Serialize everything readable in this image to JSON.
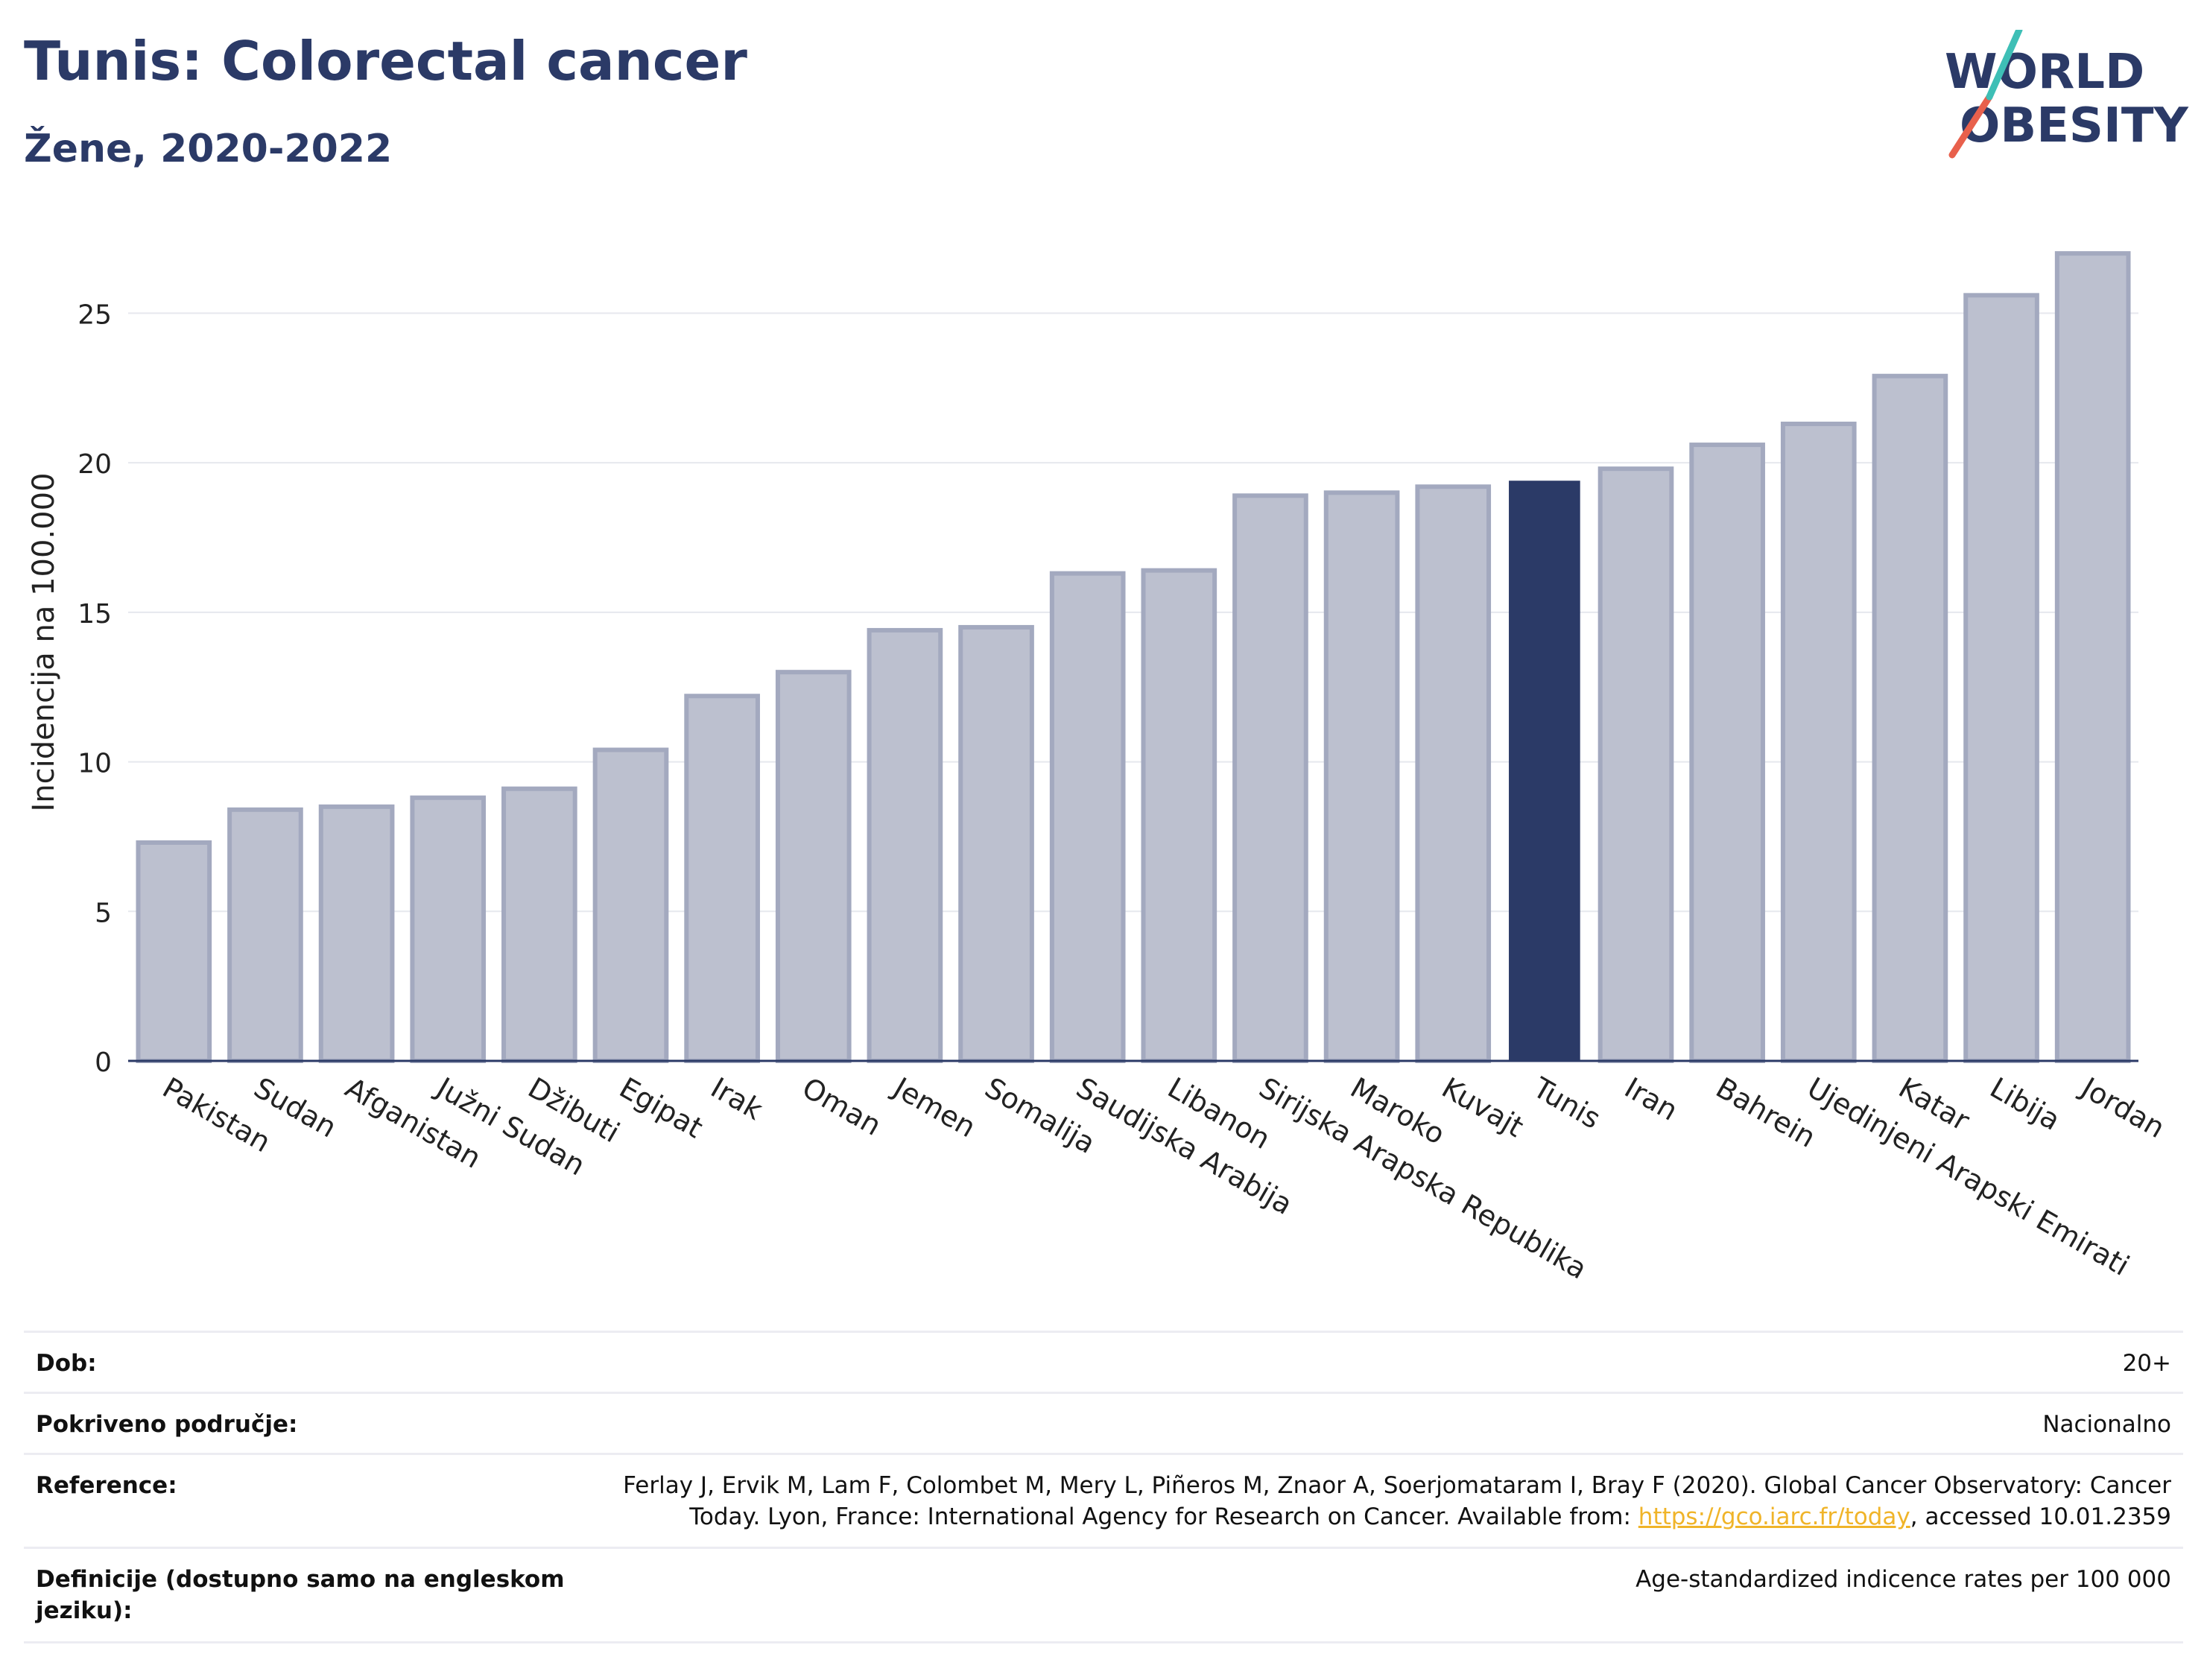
{
  "header": {
    "title": "Tunis: Colorectal cancer",
    "subtitle": "Žene, 2020-2022",
    "logo_line1": "WORLD",
    "logo_line2": "OBESITY"
  },
  "chart_data": {
    "type": "bar",
    "title": "Tunis: Colorectal cancer",
    "subtitle": "Žene, 2020-2022",
    "ylabel": "Incidencija na 100.000",
    "xlabel": "",
    "ylim": [
      0,
      28
    ],
    "yticks": [
      0,
      5,
      10,
      15,
      20,
      25
    ],
    "grid": true,
    "categories": [
      "Pakistan",
      "Sudan",
      "Afganistan",
      "Južni Sudan",
      "Džibuti",
      "Egipat",
      "Irak",
      "Oman",
      "Jemen",
      "Somalija",
      "Saudijska Arabija",
      "Libanon",
      "Sirijska Arapska Republika",
      "Maroko",
      "Kuvajt",
      "Tunis",
      "Iran",
      "Bahrein",
      "Ujedinjeni Arapski Emirati",
      "Katar",
      "Libija",
      "Jordan"
    ],
    "values": [
      7.3,
      8.4,
      8.5,
      8.8,
      9.1,
      10.4,
      12.2,
      13.0,
      14.4,
      14.5,
      16.3,
      16.4,
      18.9,
      19.0,
      19.2,
      19.4,
      19.8,
      20.6,
      21.3,
      22.9,
      25.6,
      27.0
    ],
    "highlight": "Tunis",
    "colors": {
      "bar": "#bcc0cf",
      "bar_border": "#a3a9bf",
      "highlight": "#2b3a67",
      "axis": "#2b3a67",
      "grid": "#e6e8ee"
    }
  },
  "info_table": [
    {
      "label": "Dob:",
      "value": "20+"
    },
    {
      "label": "Pokriveno područje:",
      "value": "Nacionalno"
    },
    {
      "label": "Reference:",
      "value_line1": "Ferlay J, Ervik M, Lam F, Colombet M, Mery L, Piñeros M, Znaor A, Soerjomataram I, Bray F (2020). Global Cancer Observatory: Cancer",
      "value_line2_pre": "Today. Lyon, France: International Agency for Research on Cancer. Available from: ",
      "link": "https://gco.iarc.fr/today",
      "value_line2_post": ", accessed 10.01.2359"
    },
    {
      "label_line1": "Definicije (dostupno samo na engleskom",
      "label_line2": "jeziku):",
      "value": "Age-standardized indicence rates per 100 000"
    }
  ]
}
